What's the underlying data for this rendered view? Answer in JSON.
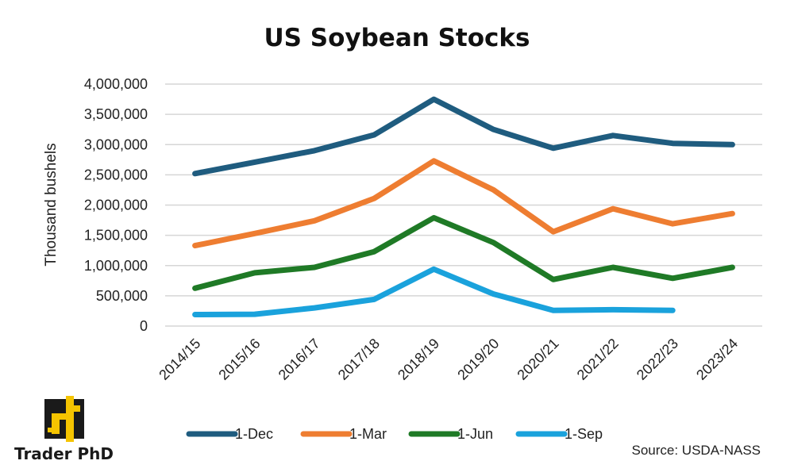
{
  "chart_data": {
    "type": "line",
    "title": "US Soybean Stocks",
    "ylabel": "Thousand bushels",
    "xlabel": "",
    "categories": [
      "2014/15",
      "2015/16",
      "2016/17",
      "2017/18",
      "2018/19",
      "2019/20",
      "2020/21",
      "2021/22",
      "2022/23",
      "2023/24"
    ],
    "ylim": [
      0,
      4000000
    ],
    "yticks": [
      0,
      500000,
      1000000,
      1500000,
      2000000,
      2500000,
      3000000,
      3500000,
      4000000
    ],
    "ytick_labels": [
      "0",
      "500,000",
      "1,000,000",
      "1,500,000",
      "2,000,000",
      "2,500,000",
      "3,000,000",
      "3,500,000",
      "4,000,000"
    ],
    "grid": true,
    "legend_position": "bottom",
    "series": [
      {
        "name": "1-Dec",
        "color": "#1f5c7f",
        "values": [
          2520000,
          2710000,
          2900000,
          3160000,
          3750000,
          3250000,
          2940000,
          3150000,
          3020000,
          3000000
        ]
      },
      {
        "name": "1-Mar",
        "color": "#ee7d31",
        "values": [
          1330000,
          1530000,
          1740000,
          2110000,
          2730000,
          2250000,
          1560000,
          1940000,
          1690000,
          1860000
        ]
      },
      {
        "name": "1-Jun",
        "color": "#1f7a26",
        "values": [
          625000,
          880000,
          970000,
          1230000,
          1790000,
          1380000,
          770000,
          970000,
          790000,
          970000
        ]
      },
      {
        "name": "1-Sep",
        "color": "#1aa2dc",
        "values": [
          190000,
          195000,
          300000,
          440000,
          940000,
          530000,
          260000,
          270000,
          260000,
          null
        ]
      }
    ]
  },
  "source": "Source: USDA-NASS",
  "logo": {
    "name": "Trader PhD",
    "colors": {
      "mark": "#f5c400",
      "dark": "#1a1a1a"
    }
  }
}
